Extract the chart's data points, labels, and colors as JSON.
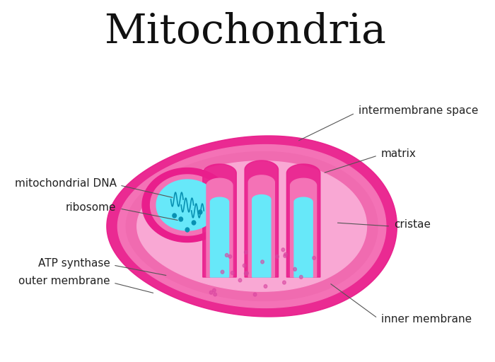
{
  "title": "Mitochondria",
  "title_fontsize": 42,
  "title_font": "serif",
  "bg_color": "#ffffff",
  "labels": {
    "intermembrane_space": "intermembrane space",
    "matrix": "matrix",
    "cristae": "cristae",
    "mitochondrial_dna": "mitochondrial DNA",
    "ribosome": "ribosome",
    "atp_synthase": "ATP synthase",
    "outer_membrane": "outer membrane",
    "inner_membrane": "inner membrane"
  },
  "colors": {
    "outer_membrane": "#F472B6",
    "outer_membrane_dark": "#E91E8C",
    "inner_membrane": "#F472B6",
    "inner_membrane_dark": "#E91E8C",
    "matrix_fill": "#F9A8D4",
    "intermembrane_fill": "#F472B6",
    "cristae_fill": "#67E8F9",
    "cristae_dark": "#22D3EE",
    "cristae_outline": "#0891B2",
    "dna_color": "#0891B2",
    "ribosome_color": "#0891B2"
  }
}
